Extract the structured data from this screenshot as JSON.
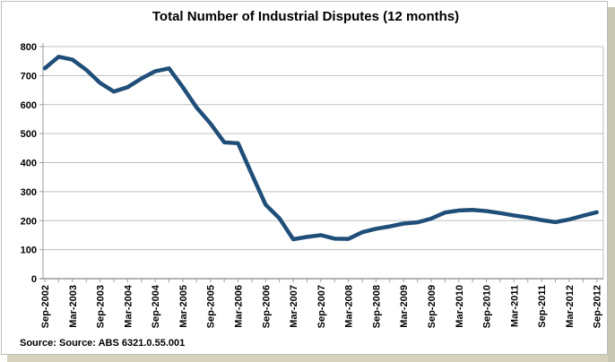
{
  "window": {
    "title": "Total Number of Industrial Disputes (12 months)"
  },
  "chart_data": {
    "type": "line",
    "title": "Total Number of Industrial Disputes (12 months)",
    "source": "Source: Source: ABS 6321.0.55.001",
    "xlabel": "",
    "ylabel": "",
    "ylim": [
      0,
      800
    ],
    "ystep": 100,
    "grid": "horizontal",
    "legend": "none",
    "x_label_every": 2,
    "categories": [
      "Sep-2002",
      "Dec-2002",
      "Mar-2003",
      "Jun-2003",
      "Sep-2003",
      "Dec-2003",
      "Mar-2004",
      "Jun-2004",
      "Sep-2004",
      "Dec-2004",
      "Mar-2005",
      "Jun-2005",
      "Sep-2005",
      "Dec-2005",
      "Mar-2006",
      "Jun-2006",
      "Sep-2006",
      "Dec-2006",
      "Mar-2007",
      "Jun-2007",
      "Sep-2007",
      "Dec-2007",
      "Mar-2008",
      "Jun-2008",
      "Sep-2008",
      "Dec-2008",
      "Mar-2009",
      "Jun-2009",
      "Sep-2009",
      "Dec-2009",
      "Mar-2010",
      "Jun-2010",
      "Sep-2010",
      "Dec-2010",
      "Mar-2011",
      "Jun-2011",
      "Sep-2011",
      "Dec-2011",
      "Mar-2012",
      "Jun-2012",
      "Sep-2012"
    ],
    "series": [
      {
        "name": "Total number of industrial disputes (12 months)",
        "values": [
          725,
          765,
          755,
          720,
          675,
          645,
          660,
          690,
          715,
          725,
          660,
          590,
          535,
          470,
          467,
          360,
          255,
          208,
          136,
          144,
          150,
          138,
          137,
          160,
          172,
          180,
          190,
          194,
          207,
          228,
          235,
          237,
          233,
          226,
          218,
          211,
          202,
          195,
          204,
          217,
          229
        ]
      }
    ],
    "colors": {
      "line": "#1F4E79",
      "grid": "#c0c0c0",
      "axis": "#9b9b9b",
      "text": "#000000"
    }
  }
}
